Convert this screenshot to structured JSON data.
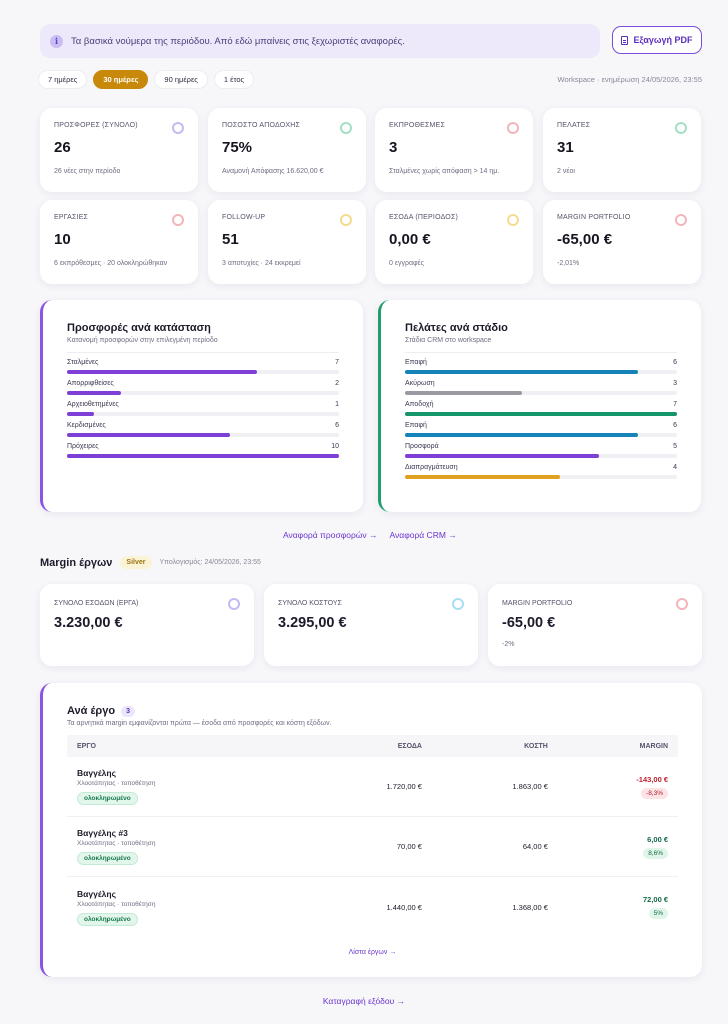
{
  "banner": {
    "text": "Τα βασικά νούμερα της περιόδου. Από εδώ μπαίνεις στις ξεχωριστές αναφορές.",
    "info_icon": "i"
  },
  "export_button": {
    "label": "Εξαγωγή PDF",
    "icon": "document-icon"
  },
  "periods": [
    {
      "label": "7 ημέρες",
      "active": false
    },
    {
      "label": "30 ημέρες",
      "active": true
    },
    {
      "label": "90 ημέρες",
      "active": false
    },
    {
      "label": "1 έτος",
      "active": false
    }
  ],
  "updated": "Workspace · ενημέρωση 24/05/2026, 23:55",
  "kpis": [
    {
      "label": "ΠΡΟΣΦΟΡΕΣ (ΣΥΝΟΛΟ)",
      "value": "26",
      "sub": "26 νέες στην περίοδο",
      "color": "#b9aef0"
    },
    {
      "label": "ΠΟΣΟΣΤΟ ΑΠΟΔΟΧΗΣ",
      "value": "75%",
      "sub": "Αναμονή Απόφασης 16.620,00 €",
      "color": "#8fdcb8"
    },
    {
      "label": "ΕΚΠΡΟΘΕΣΜΕΣ",
      "value": "3",
      "sub": "Σταλμένες χωρίς απόφαση > 14 ημ.",
      "color": "#f0a8b0"
    },
    {
      "label": "ΠΕΛΑΤΕΣ",
      "value": "31",
      "sub": "2 νέοι",
      "color": "#8fdcb8"
    },
    {
      "label": "ΕΡΓΑΣΙΕΣ",
      "value": "10",
      "sub": "6 εκπρόθεσμες · 20 ολοκληρώθηκαν",
      "color": "#f0a8b0"
    },
    {
      "label": "FOLLOW-UP",
      "value": "51",
      "sub": "3 αποτυχίες · 24 εκκρεμεί",
      "color": "#f0d77a"
    },
    {
      "label": "ΕΣΟΔΑ (ΠΕΡΙΟΔΟΣ)",
      "value": "0,00 €",
      "sub": "0 εγγραφές",
      "color": "#f0d77a"
    },
    {
      "label": "MARGIN PORTFOLIO",
      "value": "-65,00 €",
      "sub": "-2,01%",
      "color": "#f0a8b0"
    }
  ],
  "offers_panel": {
    "title": "Προσφορές ανά κατάσταση",
    "subtitle": "Κατανομή προσφορών στην επιλεγμένη περίοδο",
    "max": 10,
    "rows": [
      {
        "label": "Σταλμένες",
        "value": 7,
        "color": "#7d3fd6"
      },
      {
        "label": "Απορριφθείσες",
        "value": 2,
        "color": "#7d3fd6"
      },
      {
        "label": "Αρχειοθετημένες",
        "value": 1,
        "color": "#7d3fd6"
      },
      {
        "label": "Κερδισμένες",
        "value": 6,
        "color": "#7d3fd6"
      },
      {
        "label": "Πρόχειρες",
        "value": 10,
        "color": "#7d3fd6"
      }
    ]
  },
  "clients_panel": {
    "title": "Πελάτες ανά στάδιο",
    "subtitle": "Στάδια CRM στο workspace",
    "max": 7,
    "rows": [
      {
        "label": "Επαφή",
        "value": 6,
        "color": "#1582b8"
      },
      {
        "label": "Ακύρωση",
        "value": 3,
        "color": "#9a9aa2"
      },
      {
        "label": "Αποδοχή",
        "value": 7,
        "color": "#15956a"
      },
      {
        "label": "Επαφή",
        "value": 6,
        "color": "#1582b8"
      },
      {
        "label": "Προσφορά",
        "value": 5,
        "color": "#7d3fd6"
      },
      {
        "label": "Διαπραγμάτευση",
        "value": 4,
        "color": "#e0a020"
      }
    ]
  },
  "links": {
    "offers_report": "Αναφορά προσφορών →",
    "crm_report": "Αναφορά CRM →"
  },
  "margin": {
    "title": "Margin έργων",
    "tier": "Silver",
    "calculated": "Υπολογισμός: 24/05/2026, 23:55",
    "kpis": [
      {
        "label": "ΣΥΝΟΛΟ ΕΣΟΔΩΝ (ΕΡΓΑ)",
        "value": "3.230,00 €",
        "sub": "",
        "color": "#b9aef0"
      },
      {
        "label": "ΣΥΝΟΛΟ ΚΟΣΤΟΥΣ",
        "value": "3.295,00 €",
        "sub": "",
        "color": "#9ad8ee"
      },
      {
        "label": "MARGIN PORTFOLIO",
        "value": "-65,00 €",
        "sub": "-2%",
        "color": "#f0a8b0"
      }
    ]
  },
  "projects": {
    "title": "Ανά έργο",
    "count": "3",
    "subtitle": "Τα αρνητικά margin εμφανίζονται πρώτα — έσοδα από προσφορές και κόστη εξόδων.",
    "columns": {
      "project": "ΕΡΓΟ",
      "revenue": "ΕΣΟΔΑ",
      "cost": "ΚΟΣΤΗ",
      "margin": "MARGIN"
    },
    "rows": [
      {
        "name": "Βαγγέλης",
        "desc": "Χλοοτάπητας · τοποθέτηση",
        "status": "ολοκληρωμένο",
        "revenue": "1.720,00 €",
        "cost": "1.863,00 €",
        "margin": "-143,00 €",
        "pct": "-8,3%",
        "negative": true
      },
      {
        "name": "Βαγγέλης #3",
        "desc": "Χλοοτάπητας · τοποθέτηση",
        "status": "ολοκληρωμένο",
        "revenue": "70,00 €",
        "cost": "64,00 €",
        "margin": "6,00 €",
        "pct": "8,6%",
        "negative": false
      },
      {
        "name": "Βαγγέλης",
        "desc": "Χλοοτάπητας · τοποθέτηση",
        "status": "ολοκληρωμένο",
        "revenue": "1.440,00 €",
        "cost": "1.368,00 €",
        "margin": "72,00 €",
        "pct": "5%",
        "negative": false
      }
    ],
    "list_link": "Λίστα έργων →"
  },
  "footer_link": "Καταγραφή εξόδου →"
}
